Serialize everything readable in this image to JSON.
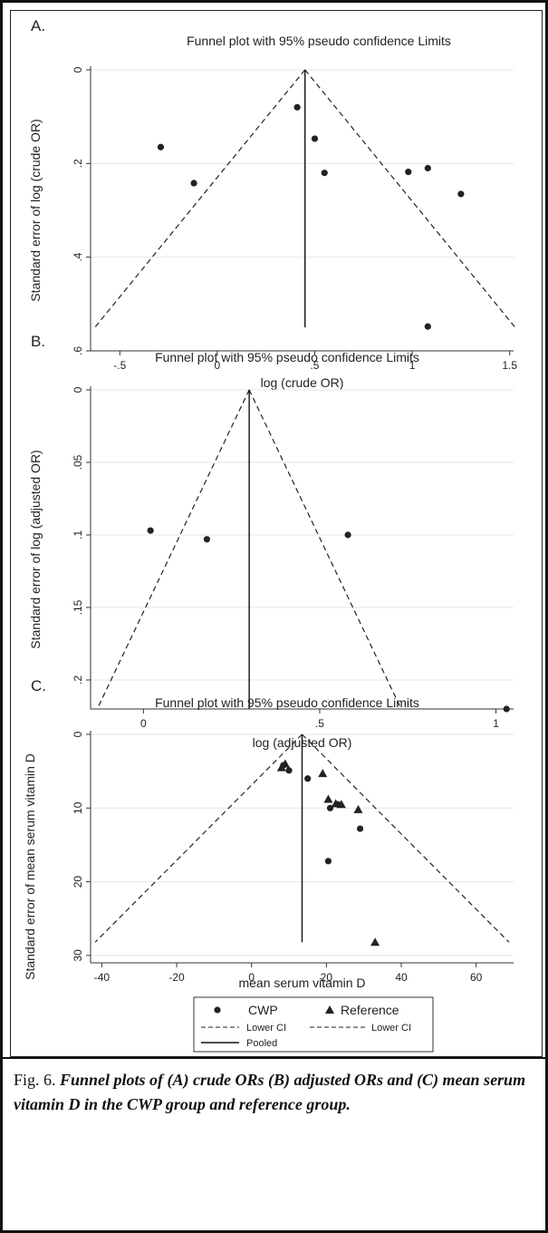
{
  "chart_data": [
    {
      "type": "scatter",
      "panel_label": "A.",
      "title": "Funnel plot with 95% pseudo confidence Limits",
      "xlabel": "log (crude OR)",
      "ylabel": "Standard error of log (crude OR)",
      "xlim": [
        -0.65,
        1.52
      ],
      "ylim": [
        0,
        0.6
      ],
      "y_reversed": true,
      "xticks": [
        -0.5,
        0,
        0.5,
        1,
        1.5
      ],
      "xtick_labels": [
        "-.5",
        "0",
        ".5",
        "1",
        "1.5"
      ],
      "yticks": [
        0,
        0.2,
        0.4,
        0.6
      ],
      "ytick_labels": [
        "0",
        ".2",
        ".4",
        ".6"
      ],
      "pooled": 0.45,
      "funnel_max_se": 0.55,
      "series": [
        {
          "marker": "circle",
          "points": [
            [
              -0.29,
              0.165
            ],
            [
              -0.12,
              0.242
            ],
            [
              0.41,
              0.08
            ],
            [
              0.5,
              0.147
            ],
            [
              0.55,
              0.22
            ],
            [
              0.98,
              0.218
            ],
            [
              1.08,
              0.21
            ],
            [
              1.25,
              0.265
            ],
            [
              1.08,
              0.548
            ]
          ]
        }
      ]
    },
    {
      "type": "scatter",
      "panel_label": "B.",
      "title": "Funnel plot with 95% pseudo confidence Limits",
      "xlabel": "log (adjusted OR)",
      "ylabel": "Standard error of log (adjusted OR)",
      "xlim": [
        -0.15,
        1.05
      ],
      "ylim": [
        0,
        0.22
      ],
      "y_reversed": true,
      "xticks": [
        0,
        0.5,
        1
      ],
      "xtick_labels": [
        "0",
        ".5",
        "1"
      ],
      "yticks": [
        0,
        0.05,
        0.1,
        0.15,
        0.2
      ],
      "ytick_labels": [
        "0",
        ".05",
        ".1",
        ".15",
        ".2"
      ],
      "pooled": 0.3,
      "funnel_max_se": 0.22,
      "series": [
        {
          "marker": "circle",
          "points": [
            [
              0.02,
              0.097
            ],
            [
              0.18,
              0.103
            ],
            [
              0.58,
              0.1
            ],
            [
              1.03,
              0.22
            ]
          ]
        }
      ]
    },
    {
      "type": "scatter",
      "panel_label": "C.",
      "title": "Funnel plot with 95% pseudo confidence Limits",
      "xlabel": "mean serum vitamin D",
      "ylabel": "Standard error of mean serum vitamin D",
      "xlim": [
        -43,
        70
      ],
      "ylim": [
        0,
        31
      ],
      "y_reversed": true,
      "xticks": [
        -40,
        -20,
        0,
        20,
        40,
        60
      ],
      "xtick_labels": [
        "-40",
        "-20",
        "0",
        "20",
        "40",
        "60"
      ],
      "yticks": [
        0,
        10,
        20,
        30
      ],
      "ytick_labels": [
        "0",
        "10",
        "20",
        "30"
      ],
      "pooled": 13.5,
      "funnel_max_se": 28.2,
      "series": [
        {
          "name": "CWP",
          "marker": "circle",
          "points": [
            [
              8.5,
              4.2
            ],
            [
              10.0,
              4.9
            ],
            [
              15.0,
              6.0
            ],
            [
              21.0,
              10.0
            ],
            [
              23.0,
              9.5
            ],
            [
              29.0,
              12.8
            ],
            [
              20.5,
              17.2
            ]
          ]
        },
        {
          "name": "Reference",
          "marker": "triangle",
          "points": [
            [
              8.0,
              4.5
            ],
            [
              9.0,
              4.0
            ],
            [
              19.0,
              5.3
            ],
            [
              20.5,
              8.8
            ],
            [
              22.5,
              9.4
            ],
            [
              24.0,
              9.5
            ],
            [
              28.5,
              10.2
            ],
            [
              33.0,
              28.2
            ]
          ]
        }
      ],
      "legend": {
        "position": "bottom",
        "entries": [
          {
            "label": "CWP",
            "symbol": "circle"
          },
          {
            "label": "Reference",
            "symbol": "triangle"
          },
          {
            "label": "Lower CI",
            "symbol": "dashed"
          },
          {
            "label": "Lower CI",
            "symbol": "dashed"
          },
          {
            "label": "Pooled",
            "symbol": "solid"
          }
        ]
      }
    }
  ],
  "caption": {
    "lead": "Fig. 6.",
    "text": "Funnel plots of (A) crude ORs (B) adjusted ORs and (C) mean serum vitamin D in the CWP group and reference group."
  },
  "colors": {
    "ink": "#111111",
    "background": "#ffffff",
    "gridline": "#e6e6e6"
  }
}
